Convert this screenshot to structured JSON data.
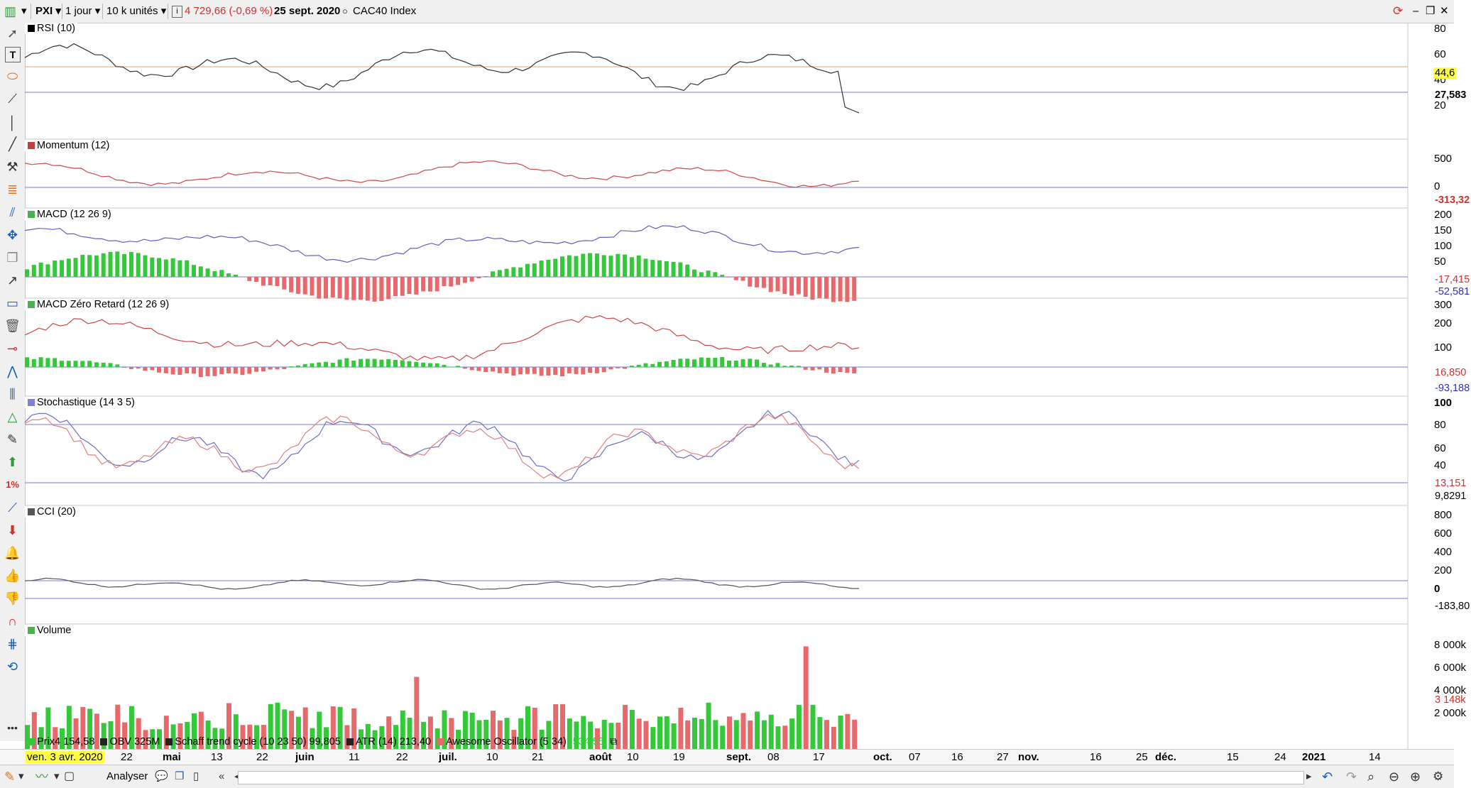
{
  "toolbar": {
    "symbol": "PXI",
    "period": "1 jour",
    "units": "10 k unités",
    "info_icon": "info-icon",
    "price_change": "4 729,66 (-0,69 %)",
    "date": "25 sept. 2020",
    "index_name": "CAC40 Index"
  },
  "panels": {
    "rsi": {
      "label": "RSI (10)",
      "axis": [
        "80",
        "60",
        "40",
        "20"
      ],
      "badge_level": "44,6",
      "badge_value": "27,583"
    },
    "momentum": {
      "label": "Momentum (12)",
      "axis": [
        "500",
        "0"
      ],
      "badge_value": "-313,32"
    },
    "macd": {
      "label": "MACD (12 26 9)",
      "axis": [
        "200",
        "150",
        "100",
        "50"
      ],
      "badge_1": "-17,415",
      "badge_2": "-52,581"
    },
    "macd_zl": {
      "label": "MACD Zéro Retard (12 26 9)",
      "axis": [
        "300",
        "200",
        "100"
      ],
      "badge_1": "16,850",
      "badge_2": "-93,188"
    },
    "stoch": {
      "label": "Stochastique (14 3 5)",
      "axis": [
        "100",
        "80",
        "60",
        "40"
      ],
      "badge_1": "13,151",
      "badge_2": "9,8291"
    },
    "cci": {
      "label": "CCI (20)",
      "axis": [
        "800",
        "600",
        "400",
        "200",
        "0"
      ],
      "badge_value": "-183,80"
    },
    "volume": {
      "label": "Volume",
      "axis": [
        "8 000k",
        "6 000k",
        "4 000k",
        "2 000k"
      ],
      "badge_value": "3 148k"
    }
  },
  "legend": {
    "prix": "Prix4 154,58",
    "obv": "OBV 325M",
    "schaff": "Schaff trend cycle (10 23 50) 99,805",
    "atr": "ATR (14) 213,40",
    "awesome": "Awesome Oscillator (5 34)",
    "awesome_value": "-534,55"
  },
  "dates": {
    "cursor": "ven. 3 avr. 2020",
    "labels": [
      "22",
      "mai",
      "13",
      "22",
      "juin",
      "11",
      "22",
      "juil.",
      "10",
      "21",
      "août",
      "10",
      "19",
      "sept.",
      "08",
      "17",
      "oct.",
      "07",
      "16",
      "27",
      "nov.",
      "16",
      "25",
      "déc.",
      "15",
      "24",
      "2021",
      "14"
    ]
  },
  "bottombar": {
    "analyser_label": "Analyser"
  },
  "colors": {
    "up": "#35c83a",
    "down": "#e8696c",
    "level_line": "#7878d8",
    "rsi_ref": "#e8a070",
    "badge_yellow": "#ffff44"
  }
}
